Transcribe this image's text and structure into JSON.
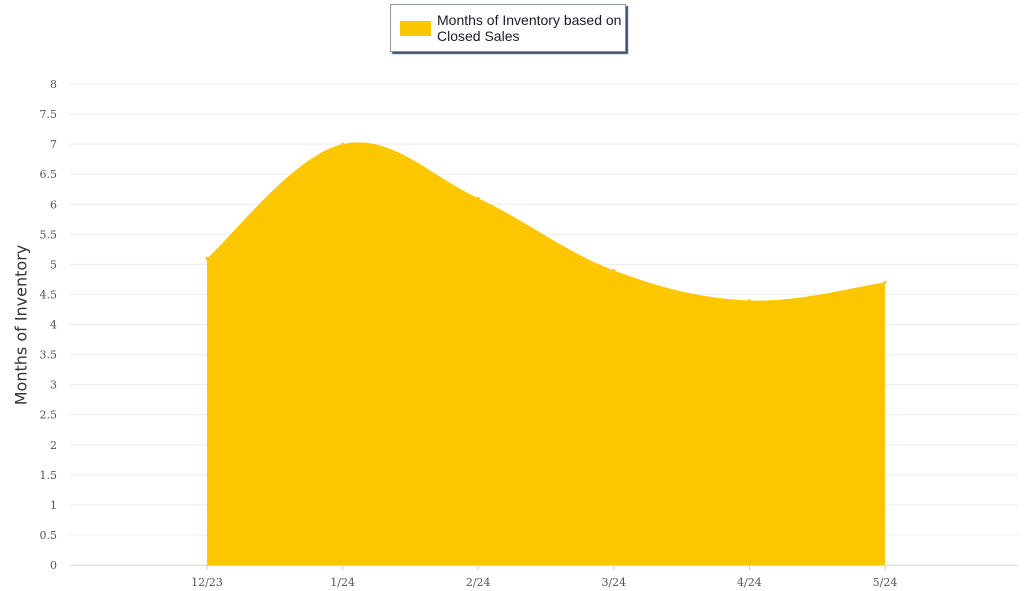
{
  "chart_data": {
    "type": "area",
    "ylabel": "Months of Inventory",
    "categories": [
      "12/23",
      "1/24",
      "2/24",
      "3/24",
      "4/24",
      "5/24"
    ],
    "series": [
      {
        "name": "Months of Inventory based on Closed Sales",
        "color": "#fdc700",
        "values": [
          5.1,
          7.0,
          6.1,
          4.9,
          4.4,
          4.7
        ]
      }
    ],
    "ylim": [
      0,
      8
    ],
    "yticks": [
      "0",
      "0.5",
      "1",
      "1.5",
      "2",
      "2.5",
      "3",
      "3.5",
      "4",
      "4.5",
      "5",
      "5.5",
      "6",
      "6.5",
      "7",
      "7.5",
      "8"
    ],
    "grid": true,
    "legend": "top-center"
  }
}
